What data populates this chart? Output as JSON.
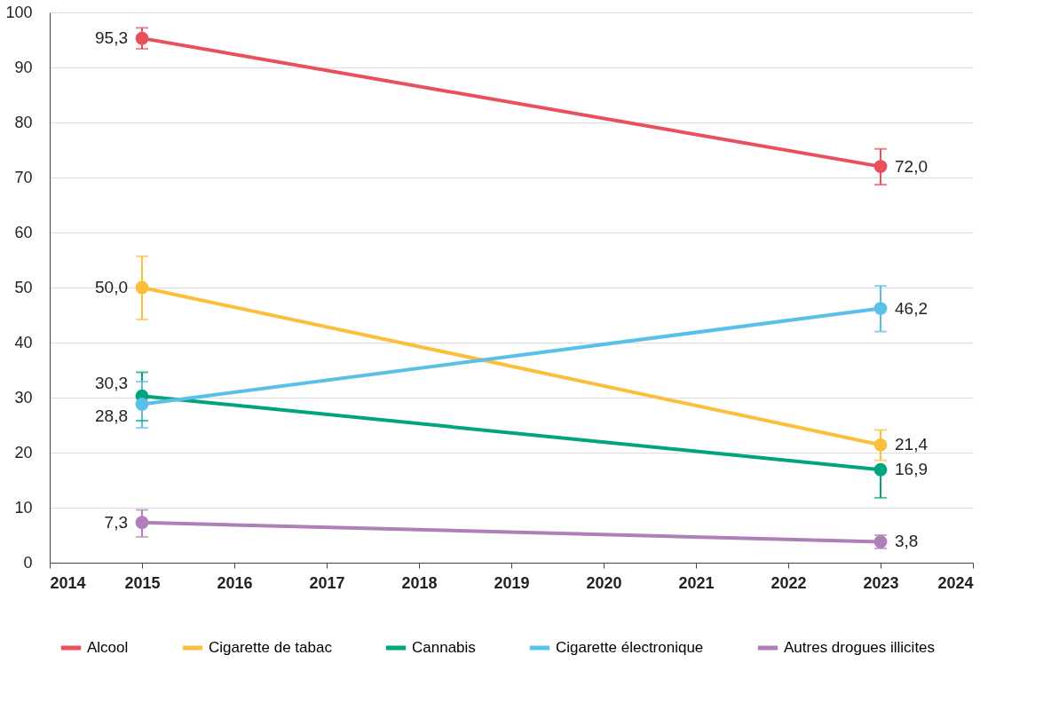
{
  "chart_data": {
    "type": "line",
    "x": [
      2015,
      2023
    ],
    "xlim": [
      2014,
      2024
    ],
    "xticks": [
      2014,
      2015,
      2016,
      2017,
      2018,
      2019,
      2020,
      2021,
      2022,
      2023,
      2024
    ],
    "ylim": [
      0,
      100
    ],
    "yticks": [
      0,
      10,
      20,
      30,
      40,
      50,
      60,
      70,
      80,
      90,
      100
    ],
    "grid": "y",
    "legend": "bottom",
    "marker": "circle",
    "line_style": "solid",
    "series": [
      {
        "name": "Alcool",
        "color": "#e8515b",
        "values": [
          95.3,
          72.0
        ],
        "value_labels": [
          "95,3",
          "72,0"
        ],
        "errors": [
          [
            93.4,
            97.2
          ],
          [
            68.7,
            75.2
          ]
        ]
      },
      {
        "name": "Cigarette de tabac",
        "color": "#fbbf3c",
        "values": [
          50.0,
          21.4
        ],
        "value_labels": [
          "50,0",
          "21,4"
        ],
        "errors": [
          [
            44.2,
            55.7
          ],
          [
            18.6,
            24.1
          ]
        ]
      },
      {
        "name": "Cannabis",
        "color": "#00a57e",
        "values": [
          30.3,
          16.9
        ],
        "value_labels": [
          "30,3",
          "16,9"
        ],
        "errors": [
          [
            25.8,
            34.6
          ],
          [
            11.8,
            16.9
          ]
        ]
      },
      {
        "name": "Cigarette électronique",
        "color": "#5bc0e8",
        "values": [
          28.8,
          46.2
        ],
        "value_labels": [
          "28,8",
          "46,2"
        ],
        "errors": [
          [
            24.5,
            32.9
          ],
          [
            42.0,
            50.3
          ]
        ]
      },
      {
        "name": "Autres drogues illicites",
        "color": "#b07fba",
        "values": [
          7.3,
          3.8
        ],
        "value_labels": [
          "7,3",
          "3,8"
        ],
        "errors": [
          [
            4.7,
            9.6
          ],
          [
            2.6,
            5.0
          ]
        ]
      }
    ]
  }
}
